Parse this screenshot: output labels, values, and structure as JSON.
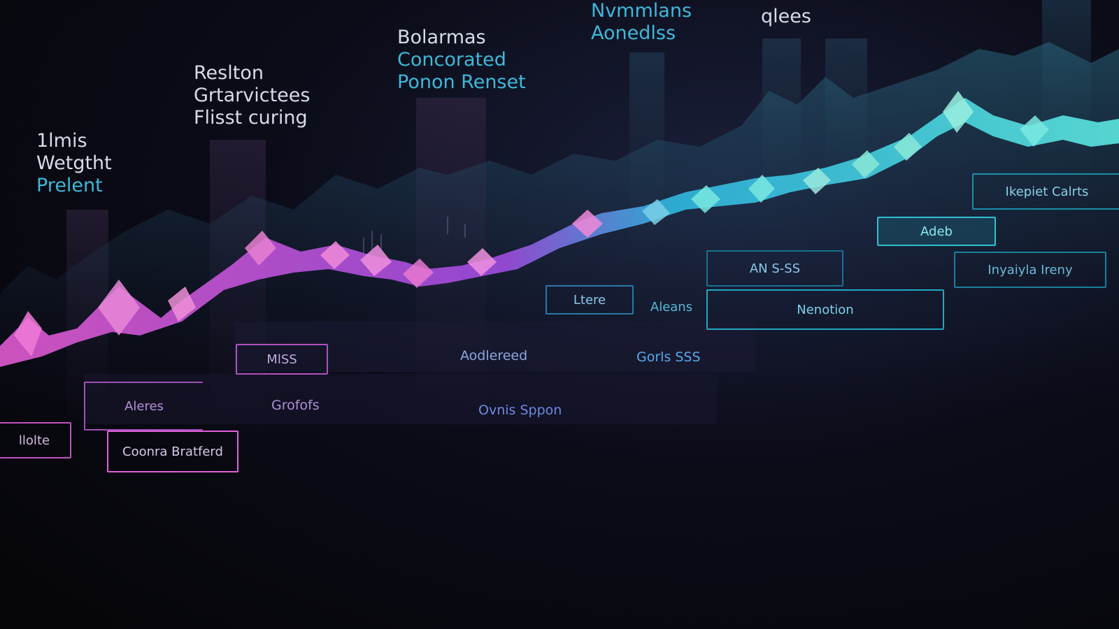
{
  "colors": {
    "magenta": "#e05ad0",
    "purple": "#7a4dc8",
    "teal": "#2fc8d8",
    "cyan": "#5ce8e0",
    "text_light": "#d8dce8",
    "text_teal": "#3fb8d8"
  },
  "headings": [
    {
      "lines": [
        "1lmis",
        "Wetgtht",
        "Prelent"
      ]
    },
    {
      "lines": [
        "Reslton",
        "Grtarvictees",
        "Flisst curing"
      ]
    },
    {
      "lines": [
        "Bolarmas",
        "Concorated",
        "Ponon Renset"
      ]
    },
    {
      "lines": [
        "Nvmmlans",
        "Aonedlss"
      ]
    },
    {
      "lines": [
        "qlees"
      ]
    }
  ],
  "tags": {
    "magenta": [
      "llolte",
      "Coonra Bratferd",
      "Aleres",
      "Grofofs",
      "MlSS"
    ],
    "teal": [
      "Ltere",
      "Aleans",
      "Nenotion",
      "AN S-SS",
      "Adeb",
      "Inyaiyla Ireny",
      "Ikepiet Calrts"
    ],
    "plain": [
      "Aodlereed",
      "Gorls SSS",
      "Ovnis Sppon"
    ]
  }
}
